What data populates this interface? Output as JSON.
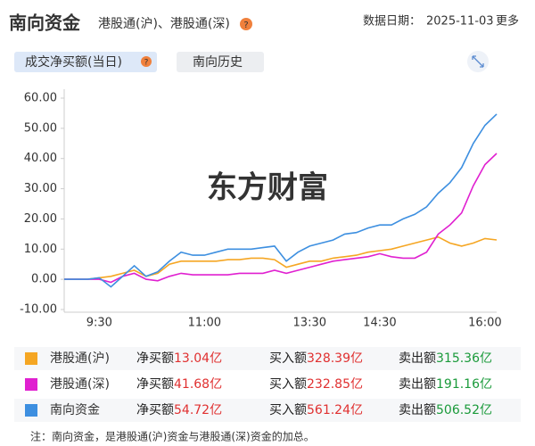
{
  "header": {
    "title": "南向资金",
    "subtitle": "港股通(沪)、港股通(深)",
    "help": "?",
    "date_label": "数据日期：",
    "date": "2025-11-03",
    "more": "更多"
  },
  "tabs": [
    {
      "label": "成交净买额(当日)",
      "help": "?"
    },
    {
      "label": "南向历史"
    }
  ],
  "watermark": "东方财富",
  "chart_data": {
    "type": "line",
    "categories": [
      null,
      null,
      null,
      "9:30",
      null,
      null,
      null,
      null,
      null,
      null,
      null,
      null,
      "11:00",
      null,
      null,
      null,
      null,
      null,
      null,
      null,
      null,
      "13:30",
      null,
      null,
      null,
      null,
      null,
      "14:30",
      null,
      null,
      null,
      null,
      null,
      null,
      null,
      null,
      "16:00",
      null
    ],
    "series": [
      {
        "name": "港股通(沪)",
        "color": "#f5a623",
        "values": [
          0,
          0,
          0,
          0.5,
          1,
          2,
          3,
          1,
          2,
          5,
          6,
          6,
          6,
          6,
          6.5,
          6.5,
          7,
          7,
          6.5,
          4,
          5,
          6,
          6,
          7,
          7.5,
          8,
          9,
          9.5,
          10,
          11,
          12,
          13,
          14,
          12,
          11,
          12,
          13.5,
          13.04
        ]
      },
      {
        "name": "港股通(深)",
        "color": "#e020d0",
        "values": [
          0,
          0,
          0,
          0,
          -1,
          1,
          2,
          0,
          -0.5,
          1,
          2,
          1.5,
          1.5,
          1.5,
          1.5,
          2,
          2,
          2,
          3,
          2,
          3,
          4,
          5,
          6,
          6.5,
          7,
          7.5,
          8.5,
          7.5,
          7,
          7,
          9,
          15,
          18,
          22,
          31,
          38,
          41.68
        ]
      },
      {
        "name": "南向资金",
        "color": "#3d8fe0",
        "values": [
          0,
          0,
          0,
          0.5,
          -2.5,
          1,
          4.5,
          1,
          2.5,
          6,
          9,
          8,
          8,
          9,
          10,
          10,
          10,
          10.5,
          11,
          6,
          9,
          11,
          12,
          13,
          15,
          15.5,
          17,
          18,
          18,
          20,
          21.5,
          24,
          28.5,
          32,
          37,
          45,
          51,
          54.72
        ]
      }
    ],
    "ylim": [
      -10,
      60
    ],
    "yticks": [
      {
        "value": 60,
        "label": "60.00"
      },
      {
        "value": 50,
        "label": "50.00"
      },
      {
        "value": 40,
        "label": "40.00"
      },
      {
        "value": 30,
        "label": "30.00"
      },
      {
        "value": 20,
        "label": "20.00"
      },
      {
        "value": 10,
        "label": "10.00"
      },
      {
        "value": 0,
        "label": "0.00"
      },
      {
        "value": -10,
        "label": "-10.00"
      }
    ],
    "grid": false
  },
  "table": {
    "rows": [
      {
        "net_label": "净买额",
        "net": "13.04亿",
        "buy_label": "买入额",
        "buy": "328.39亿",
        "sell_label": "卖出额",
        "sell": "315.36亿"
      },
      {
        "net_label": "净买额",
        "net": "41.68亿",
        "buy_label": "买入额",
        "buy": "232.85亿",
        "sell_label": "卖出额",
        "sell": "191.16亿"
      },
      {
        "net_label": "净买额",
        "net": "54.72亿",
        "buy_label": "买入额",
        "buy": "561.24亿",
        "sell_label": "卖出额",
        "sell": "506.52亿"
      }
    ]
  },
  "note": "注：南向资金，是港股通(沪)资金与港股通(深)资金的加总。"
}
